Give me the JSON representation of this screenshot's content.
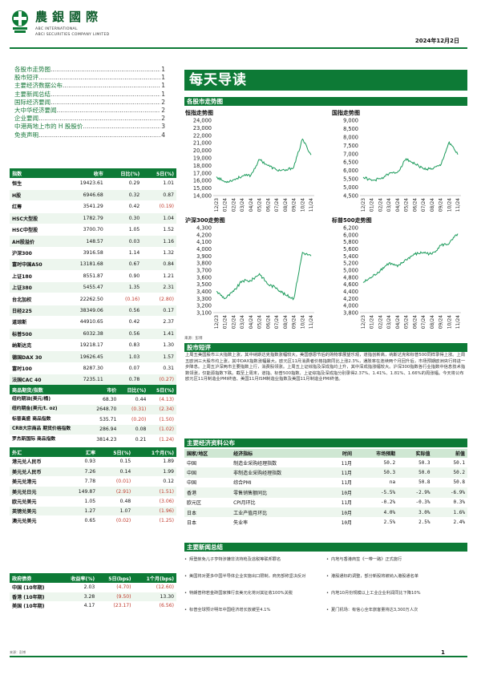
{
  "header": {
    "firm_cn": "農銀國際",
    "firm_en_1": "ABC INTERNATIONAL",
    "firm_en_2": "ABCI SECURITIES COMPANY LIMITED",
    "date": "2024年12月2日"
  },
  "toc": [
    {
      "title": "各股市走势图",
      "page": "1"
    },
    {
      "title": "股市短评",
      "page": "1"
    },
    {
      "title": "主要经济数据公布",
      "page": "1"
    },
    {
      "title": "主要新闻总结",
      "page": "1"
    },
    {
      "title": "国际经济要闻",
      "page": "2"
    },
    {
      "title": "大中华经济要闻",
      "page": "2"
    },
    {
      "title": "企业要闻",
      "page": "2"
    },
    {
      "title": "中港两地上市的 H 股股价",
      "page": "3"
    },
    {
      "title": "免责声明",
      "page": "4"
    }
  ],
  "indices": {
    "headers": [
      "指数",
      "收市",
      "日比(%)",
      "5日(%)"
    ],
    "rows": [
      [
        "恒生",
        "19423.61",
        "0.29",
        "1.01"
      ],
      [
        "H股",
        "6946.68",
        "0.32",
        "0.87"
      ],
      [
        "红筹",
        "3541.29",
        "0.42",
        "(0.19)"
      ],
      [
        "HSC大型股",
        "1782.79",
        "0.30",
        "1.04"
      ],
      [
        "HSC中型股",
        "3700.70",
        "1.05",
        "1.52"
      ],
      [
        "AH股溢价",
        "148.57",
        "0.03",
        "1.16"
      ],
      [
        "沪深300",
        "3916.58",
        "1.14",
        "1.32"
      ],
      [
        "富时中国A50",
        "13181.68",
        "0.67",
        "0.84"
      ],
      [
        "上证180",
        "8551.87",
        "0.90",
        "1.21"
      ],
      [
        "上证380",
        "5455.47",
        "1.35",
        "2.31"
      ],
      [
        "台北加权",
        "22262.50",
        "(0.16)",
        "(2.80)"
      ],
      [
        "日经225",
        "38349.06",
        "0.56",
        "0.17"
      ],
      [
        "道琼斯",
        "44910.65",
        "0.42",
        "2.37"
      ],
      [
        "标普500",
        "6032.38",
        "0.56",
        "1.41"
      ],
      [
        "纳斯达克",
        "19218.17",
        "0.83",
        "1.30"
      ],
      [
        "德国DAX 30",
        "19626.45",
        "1.03",
        "1.57"
      ],
      [
        "富时100",
        "8287.30",
        "0.07",
        "0.31"
      ],
      [
        "法国CAC 40",
        "7235.11",
        "0.78",
        "(0.27)"
      ]
    ]
  },
  "commodities": {
    "headers": [
      "商品期货/指数",
      "市价",
      "日比(%)",
      "5日(%)"
    ],
    "rows": [
      [
        "纽约期油(美元/桶)",
        "68.30",
        "0.44",
        "(4.13)"
      ],
      [
        "纽约期金(美元/t. oz)",
        "2648.70",
        "(0.31)",
        "(2.34)"
      ],
      [
        "标普高盛 商品指数",
        "535.71",
        "(0.20)",
        "(1.50)"
      ],
      [
        "CRB大宗商品 期货价格指数",
        "286.94",
        "0.08",
        "(1.02)"
      ],
      [
        "罗杰斯国际 商品指数",
        "3814.23",
        "0.21",
        "(1.24)"
      ]
    ]
  },
  "fx": {
    "headers": [
      "外汇",
      "汇率",
      "5日(%)",
      "1个月(%)"
    ],
    "rows": [
      [
        "港元兑人民币",
        "0.93",
        "0.15",
        "1.89"
      ],
      [
        "美元兑人民币",
        "7.26",
        "0.14",
        "1.99"
      ],
      [
        "美元兑港元",
        "7.78",
        "(0.01)",
        "0.12"
      ],
      [
        "美元兑日元",
        "149.87",
        "(2.91)",
        "(1.51)"
      ],
      [
        "欧元兑美元",
        "1.05",
        "0.48",
        "(3.06)"
      ],
      [
        "英镑兑美元",
        "1.27",
        "1.07",
        "(1.96)"
      ],
      [
        "澳元兑美元",
        "0.65",
        "(0.02)",
        "(1.25)"
      ]
    ]
  },
  "bonds": {
    "headers": [
      "政府债券",
      "收益率(%)",
      "5日(bps)",
      "1个月(bps)"
    ],
    "rows": [
      [
        "中国 (10年期)",
        "2.03",
        "(4.70)",
        "(12.60)"
      ],
      [
        "香港 (10年期)",
        "3.28",
        "(9.50)",
        "13.30"
      ],
      [
        "美国 (10年期)",
        "4.17",
        "(23.17)",
        "(6.56)"
      ]
    ]
  },
  "source_left": "来源：彭博",
  "banner": "每天导读",
  "sections": {
    "charts": "各股市走势图",
    "market": "股市短评",
    "econ": "主要经济资料公布",
    "news": "主要新闻总结"
  },
  "charts_source": "来源：彭博",
  "colors": {
    "brand_green": "#0d7a36",
    "line_green": "#1a9a5a",
    "negative": "#c0392b"
  },
  "chart_data": [
    {
      "type": "line",
      "title": "恒指走势图",
      "x": [
        "12/23",
        "01/24",
        "02/24",
        "03/24",
        "04/24",
        "05/24",
        "06/24",
        "07/24",
        "08/24",
        "09/24",
        "10/24",
        "11/24"
      ],
      "values": [
        16500,
        15800,
        16100,
        16600,
        16700,
        18800,
        18000,
        17400,
        17300,
        17800,
        21500,
        19400
      ],
      "yticks": [
        "14,000",
        "15,000",
        "16,000",
        "17,000",
        "18,000",
        "19,000",
        "20,000",
        "21,000",
        "22,000",
        "23,000",
        "24,000"
      ],
      "ylim": [
        14000,
        24000
      ]
    },
    {
      "type": "line",
      "title": "国指走势图",
      "x": [
        "12/23",
        "01/24",
        "02/24",
        "03/24",
        "04/24",
        "05/24",
        "06/24",
        "07/24",
        "08/24",
        "09/24",
        "10/24",
        "11/24"
      ],
      "values": [
        5600,
        5400,
        5500,
        5800,
        5900,
        6700,
        6400,
        6100,
        6100,
        6300,
        7700,
        6950
      ],
      "yticks": [
        "4,500",
        "5,000",
        "5,500",
        "6,000",
        "6,500",
        "7,000",
        "7,500",
        "8,000",
        "8,500",
        "9,000"
      ],
      "ylim": [
        4500,
        9000
      ]
    },
    {
      "type": "line",
      "title": "沪深300走势图",
      "x": [
        "12/23",
        "01/24",
        "02/24",
        "03/24",
        "04/24",
        "05/24",
        "06/24",
        "07/24",
        "08/24",
        "09/24",
        "10/24",
        "11/24"
      ],
      "values": [
        3400,
        3300,
        3400,
        3550,
        3550,
        3650,
        3500,
        3450,
        3350,
        3300,
        3950,
        3900
      ],
      "yticks": [
        "3,100",
        "3,200",
        "3,300",
        "3,400",
        "3,500",
        "3,600",
        "3,700",
        "3,800",
        "3,900",
        "4,000",
        "4,100",
        "4,200",
        "4,300"
      ],
      "ylim": [
        3100,
        4300
      ]
    },
    {
      "type": "line",
      "title": "标普500走势图",
      "x": [
        "12/23",
        "01/24",
        "02/24",
        "03/24",
        "04/24",
        "05/24",
        "06/24",
        "07/24",
        "08/24",
        "09/24",
        "10/24",
        "11/24"
      ],
      "values": [
        4650,
        4800,
        5000,
        5200,
        5100,
        5300,
        5450,
        5500,
        5450,
        5700,
        5750,
        6030
      ],
      "yticks": [
        "3,800",
        "4,000",
        "4,200",
        "4,400",
        "4,600",
        "4,800",
        "5,000",
        "5,200",
        "5,400",
        "5,600",
        "5,800",
        "6,000",
        "6,200"
      ],
      "ylim": [
        3800,
        6200
      ]
    }
  ],
  "market_text": "上周五美国股市三大指数上涨，其中纳斯达克指数涨幅较大。美国感恩节后的购物季展望乐观，道指创新高，纳斯达克和标普500同样录得上涨。上周五欧洲三大股市均上涨，其中DAX指数涨幅最大。欧元区11月消费者价格指数同比上涨2.3%，通胀率在连续两个月回升后，市场预期欧洲央行将进一步降息。上周五沪深两市主要指数上行，消费股领涨。上周五上证综指及深成指均上升，其中深成指涨幅较大。沪深300指数各行业指数中信息技术指数领涨，仅能源指数下跌。截至上周末，道指、标普500指数、上证综指及深成指分别录得2.37%、1.41%、1.81%、1.66%的周涨幅。今天将公布欧元区11月制造业PMI终值、美国11月ISM制造业指数及美国11月制造业PMI终值。",
  "econ": {
    "headers": [
      "国家/地区",
      "经济指标",
      "时间",
      "市场预期",
      "实际值",
      "前值"
    ],
    "rows": [
      [
        "中国",
        "制造业采购经理指数",
        "11月",
        "50.2",
        "50.3",
        "50.1"
      ],
      [
        "中国",
        "非制造业采购经理指数",
        "11月",
        "50.3",
        "50.0",
        "50.2"
      ],
      [
        "中国",
        "综合PMI",
        "11月",
        "na",
        "50.8",
        "50.8"
      ],
      [
        "香港",
        "零售销售额同比",
        "10月",
        "-5.5%",
        "-2.9%",
        "-6.9%"
      ],
      [
        "欧元区",
        "CPI月环比",
        "11月",
        "-0.2%",
        "-0.3%",
        "0.3%"
      ],
      [
        "日本",
        "工业产值月环比",
        "10月",
        "4.0%",
        "3.0%",
        "1.6%"
      ],
      [
        "日本",
        "失业率",
        "10月",
        "2.5%",
        "2.5%",
        "2.4%"
      ]
    ]
  },
  "news": [
    "拜登赦免儿子亨特涉嫌非法持枪及逃税等联邦罪名",
    "内地与香港商签《一带一路》正式施行",
    "美国将对更多中国半导体企业实施出口限制，商务部称坚决反对",
    "港股通标的调整，部分新股将被纳入港股通名单",
    "特朗普称若金砖国家推行去美元化将对其征收100%关税",
    "内地10月份规模以上工业企业利润同比下降10%",
    "标普全球预计明年中国经济增长放缓至4.1%",
    "夏门机场：有信心全年旅客量将达3,300万人次"
  ],
  "page_number": "1"
}
